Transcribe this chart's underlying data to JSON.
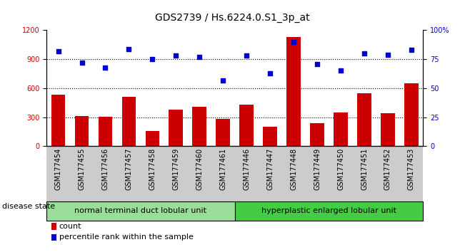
{
  "title": "GDS2739 / Hs.6224.0.S1_3p_at",
  "categories": [
    "GSM177454",
    "GSM177455",
    "GSM177456",
    "GSM177457",
    "GSM177458",
    "GSM177459",
    "GSM177460",
    "GSM177461",
    "GSM177446",
    "GSM177447",
    "GSM177448",
    "GSM177449",
    "GSM177450",
    "GSM177451",
    "GSM177452",
    "GSM177453"
  ],
  "counts": [
    530,
    310,
    305,
    510,
    155,
    380,
    410,
    280,
    430,
    205,
    1130,
    240,
    350,
    550,
    340,
    650
  ],
  "percentiles": [
    82,
    72,
    68,
    84,
    75,
    78,
    77,
    57,
    78,
    63,
    90,
    71,
    65,
    80,
    79,
    83
  ],
  "group1_label": "normal terminal duct lobular unit",
  "group1_count": 8,
  "group2_label": "hyperplastic enlarged lobular unit",
  "group2_count": 8,
  "disease_state_label": "disease state",
  "bar_color": "#cc0000",
  "dot_color": "#0000cc",
  "ylim_left": [
    0,
    1200
  ],
  "ylim_right": [
    0,
    100
  ],
  "yticks_left": [
    0,
    300,
    600,
    900,
    1200
  ],
  "yticks_right": [
    0,
    25,
    50,
    75,
    100
  ],
  "ytick_labels_right": [
    "0",
    "25",
    "50",
    "75",
    "100%"
  ],
  "grid_values": [
    300,
    600,
    900
  ],
  "legend_count_label": "count",
  "legend_pct_label": "percentile rank within the sample",
  "group1_color": "#99dd99",
  "group2_color": "#44cc44",
  "bg_color": "#cccccc",
  "title_fontsize": 10,
  "tick_fontsize": 7,
  "label_fontsize": 8
}
